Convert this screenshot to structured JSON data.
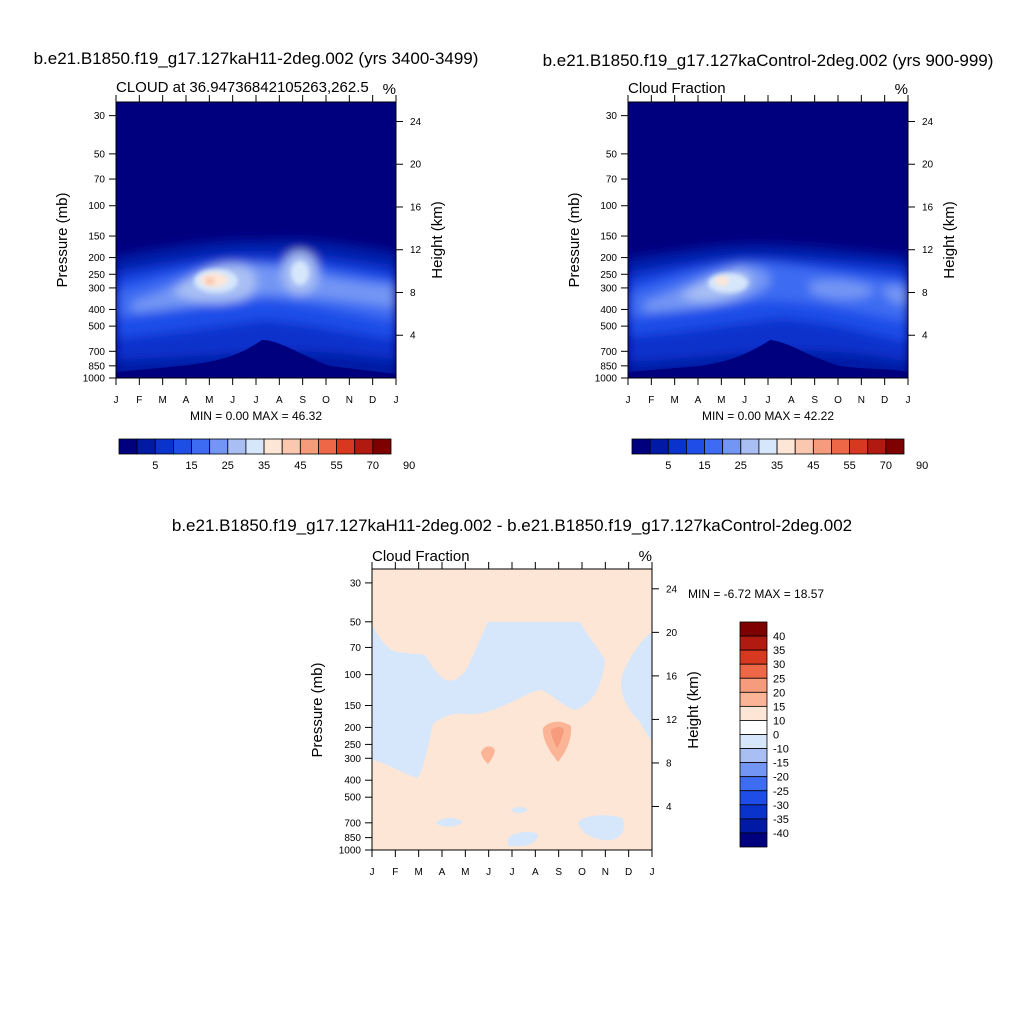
{
  "panels": [
    {
      "title": "b.e21.B1850.f19_g17.127kaH11-2deg.002 (yrs 3400-3499)",
      "subtitle": "CLOUD at 36.94736842105263,262.5",
      "units": "%",
      "minmax": "MIN =   0.00 MAX =  46.32"
    },
    {
      "title": "b.e21.B1850.f19_g17.127kaControl-2deg.002 (yrs 900-999)",
      "subtitle": "Cloud Fraction",
      "units": "%",
      "minmax": "MIN =   0.00 MAX =  42.22"
    },
    {
      "title": "b.e21.B1850.f19_g17.127kaH11-2deg.002 - b.e21.B1850.f19_g17.127kaControl-2deg.002",
      "subtitle": "Cloud Fraction",
      "units": "%",
      "minmax": "MIN =  -6.72 MAX =  18.57"
    }
  ],
  "chart_data": [
    {
      "type": "heatmap",
      "title": "b.e21.B1850.f19_g17.127kaH11-2deg.002 (yrs 3400-3499)",
      "subtitle": "CLOUD at 36.94736842105263,262.5",
      "xlabel": "",
      "ylabel": "Pressure (mb)",
      "ylabel_right": "Height (km)",
      "x_ticks": [
        "J",
        "F",
        "M",
        "A",
        "M",
        "J",
        "J",
        "A",
        "S",
        "O",
        "N",
        "D",
        "J"
      ],
      "y_ticks": [
        30,
        50,
        70,
        100,
        150,
        200,
        250,
        300,
        400,
        500,
        700,
        850,
        1000
      ],
      "y_right_ticks": [
        4,
        8,
        12,
        16,
        20,
        24
      ],
      "ylim": [
        1000,
        25
      ],
      "colorbar_ticks": [
        "5",
        "15",
        "25",
        "35",
        "45",
        "55",
        "70",
        "90"
      ],
      "colorbar_colors": [
        "#00007f",
        "#001aa6",
        "#0a33cc",
        "#1f4de8",
        "#3d6cf2",
        "#7396f4",
        "#a9bff4",
        "#d6e7fb",
        "#fde6d6",
        "#fbc7ae",
        "#f69b7b",
        "#ee6848",
        "#d73920",
        "#b01a10",
        "#7f0000"
      ],
      "min": 0.0,
      "max": 46.32,
      "features": [
        {
          "label": "upper-troposphere maximum",
          "month": "May",
          "pressure_mb": 265,
          "value": 46
        },
        {
          "label": "secondary maximum",
          "month": "Sep",
          "pressure_mb": 235,
          "value": 38
        }
      ]
    },
    {
      "type": "heatmap",
      "title": "b.e21.B1850.f19_g17.127kaControl-2deg.002 (yrs 900-999)",
      "subtitle": "Cloud Fraction",
      "xlabel": "",
      "ylabel": "Pressure (mb)",
      "ylabel_right": "Height (km)",
      "x_ticks": [
        "J",
        "F",
        "M",
        "A",
        "M",
        "J",
        "J",
        "A",
        "S",
        "O",
        "N",
        "D",
        "J"
      ],
      "y_ticks": [
        30,
        50,
        70,
        100,
        150,
        200,
        250,
        300,
        400,
        500,
        700,
        850,
        1000
      ],
      "y_right_ticks": [
        4,
        8,
        12,
        16,
        20,
        24
      ],
      "ylim": [
        1000,
        25
      ],
      "colorbar_ticks": [
        "5",
        "15",
        "25",
        "35",
        "45",
        "55",
        "70",
        "90"
      ],
      "colorbar_colors": [
        "#00007f",
        "#001aa6",
        "#0a33cc",
        "#1f4de8",
        "#3d6cf2",
        "#7396f4",
        "#a9bff4",
        "#d6e7fb",
        "#fde6d6",
        "#fbc7ae",
        "#f69b7b",
        "#ee6848",
        "#d73920",
        "#b01a10",
        "#7f0000"
      ],
      "min": 0.0,
      "max": 42.22,
      "features": [
        {
          "label": "upper-troposphere maximum",
          "month": "May",
          "pressure_mb": 265,
          "value": 42
        }
      ]
    },
    {
      "type": "heatmap",
      "title": "b.e21.B1850.f19_g17.127kaH11-2deg.002 - b.e21.B1850.f19_g17.127kaControl-2deg.002",
      "subtitle": "Cloud Fraction",
      "xlabel": "",
      "ylabel": "Pressure (mb)",
      "ylabel_right": "Height (km)",
      "x_ticks": [
        "J",
        "F",
        "M",
        "A",
        "M",
        "J",
        "J",
        "A",
        "S",
        "O",
        "N",
        "D",
        "J"
      ],
      "y_ticks": [
        30,
        50,
        70,
        100,
        150,
        200,
        250,
        300,
        400,
        500,
        700,
        850,
        1000
      ],
      "y_right_ticks": [
        4,
        8,
        12,
        16,
        20,
        24
      ],
      "ylim": [
        1000,
        25
      ],
      "colorbar_ticks": [
        "40",
        "35",
        "30",
        "25",
        "20",
        "15",
        "10",
        "0",
        "-10",
        "-15",
        "-20",
        "-25",
        "-30",
        "-35",
        "-40"
      ],
      "colorbar_colors": [
        "#7f0000",
        "#b01a10",
        "#d73920",
        "#ee6848",
        "#f69b7b",
        "#fbb596",
        "#fde6d6",
        "#ffffff",
        "#d6e7fb",
        "#a9bff4",
        "#7396f4",
        "#3d6cf2",
        "#1f4de8",
        "#0a33cc",
        "#001aa6",
        "#00007f"
      ],
      "min": -6.72,
      "max": 18.57,
      "features": [
        {
          "label": "positive maximum",
          "month": "Sep",
          "pressure_mb": 220,
          "value": 18.57
        },
        {
          "label": "secondary positive",
          "month": "Jun",
          "pressure_mb": 265,
          "value": 15
        }
      ]
    }
  ]
}
